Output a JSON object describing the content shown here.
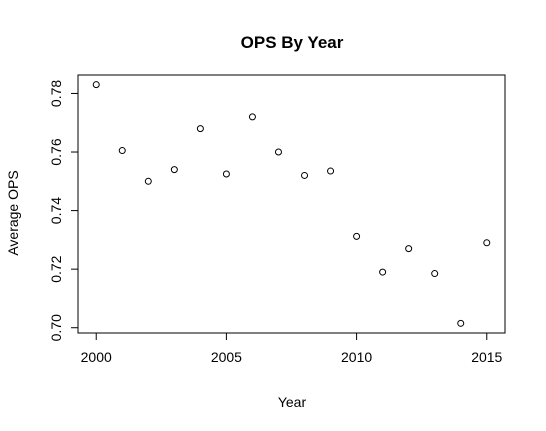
{
  "chart_data": {
    "type": "scatter",
    "title": "OPS By Year",
    "xlabel": "Year",
    "ylabel": "Average OPS",
    "x": [
      2000,
      2001,
      2002,
      2003,
      2004,
      2005,
      2006,
      2007,
      2008,
      2009,
      2010,
      2011,
      2012,
      2013,
      2014,
      2015
    ],
    "y": [
      0.783,
      0.7605,
      0.75,
      0.754,
      0.768,
      0.7525,
      0.772,
      0.76,
      0.752,
      0.7535,
      0.7312,
      0.719,
      0.727,
      0.7185,
      0.7015,
      0.729
    ],
    "xlim": [
      1999.3,
      2015.7
    ],
    "ylim": [
      0.6982,
      0.7863
    ],
    "xticks": [
      {
        "value": 2000,
        "label": "2000"
      },
      {
        "value": 2005,
        "label": "2005"
      },
      {
        "value": 2010,
        "label": "2010"
      },
      {
        "value": 2015,
        "label": "2015"
      }
    ],
    "yticks": [
      {
        "value": 0.7,
        "label": "0.70"
      },
      {
        "value": 0.72,
        "label": "0.72"
      },
      {
        "value": 0.74,
        "label": "0.74"
      },
      {
        "value": 0.76,
        "label": "0.76"
      },
      {
        "value": 0.78,
        "label": "0.78"
      }
    ],
    "marker": "open-circle",
    "grid": false,
    "color": "#000000"
  }
}
